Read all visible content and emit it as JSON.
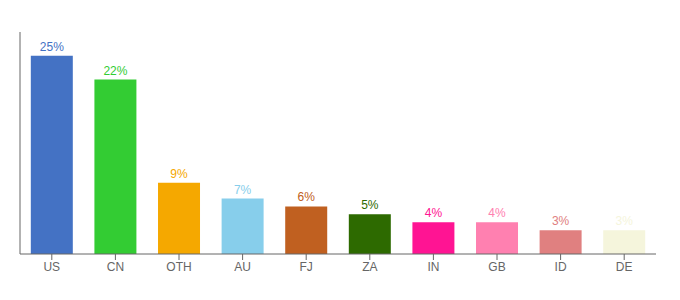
{
  "chart_data": {
    "type": "bar",
    "categories": [
      "US",
      "CN",
      "OTH",
      "AU",
      "FJ",
      "ZA",
      "IN",
      "GB",
      "ID",
      "DE"
    ],
    "values": [
      25,
      22,
      9,
      7,
      6,
      5,
      4,
      4,
      3,
      3
    ],
    "value_labels": [
      "25%",
      "22%",
      "9%",
      "7%",
      "6%",
      "5%",
      "4%",
      "4%",
      "3%",
      "3%"
    ],
    "colors": [
      "#4472c4",
      "#33cc33",
      "#f5a800",
      "#87ceeb",
      "#c06020",
      "#2d6a00",
      "#ff1493",
      "#ff80b0",
      "#e08080",
      "#f5f5dc"
    ],
    "ylim": [
      0,
      28
    ],
    "data_labels": true,
    "tick_labels": "x",
    "grid": false
  }
}
